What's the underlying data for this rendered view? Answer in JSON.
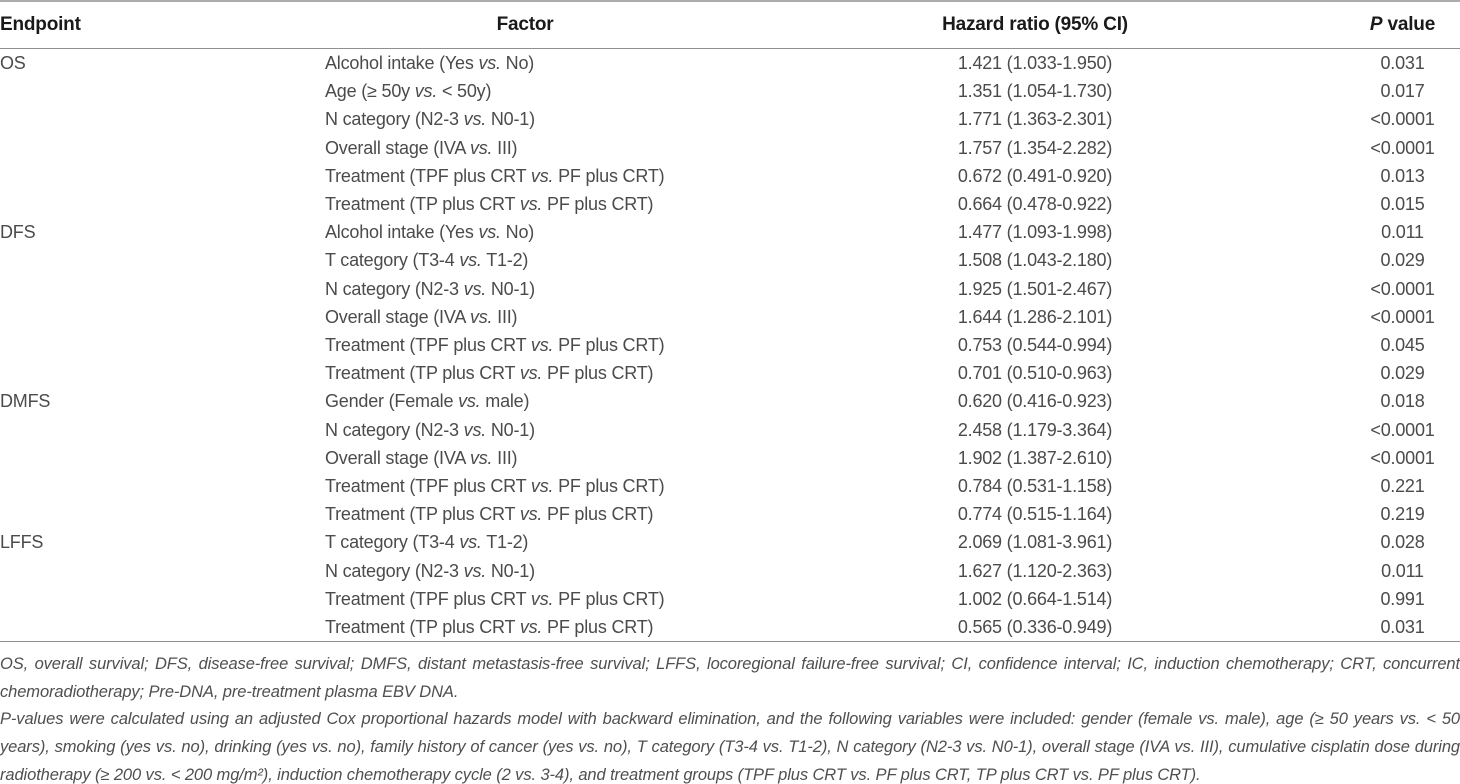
{
  "table": {
    "columns": [
      {
        "key": "endpoint",
        "label": "Endpoint"
      },
      {
        "key": "factor",
        "label": "Factor"
      },
      {
        "key": "hr",
        "label": "Hazard ratio (95% CI)"
      },
      {
        "key": "p",
        "label": "P value"
      }
    ],
    "groups": [
      {
        "endpoint": "OS",
        "rows": [
          {
            "factor": "Alcohol intake (Yes vs. No)",
            "hr": "1.421 (1.033-1.950)",
            "p": "0.031"
          },
          {
            "factor": "Age (≥ 50y vs. < 50y)",
            "hr": "1.351 (1.054-1.730)",
            "p": "0.017"
          },
          {
            "factor": "N category (N2-3 vs. N0-1)",
            "hr": "1.771 (1.363-2.301)",
            "p": "<0.0001"
          },
          {
            "factor": "Overall stage (IVA vs. III)",
            "hr": "1.757 (1.354-2.282)",
            "p": "<0.0001"
          },
          {
            "factor": "Treatment (TPF plus CRT vs. PF plus CRT)",
            "hr": "0.672 (0.491-0.920)",
            "p": "0.013"
          },
          {
            "factor": "Treatment (TP plus CRT vs. PF plus CRT)",
            "hr": "0.664 (0.478-0.922)",
            "p": "0.015"
          }
        ]
      },
      {
        "endpoint": "DFS",
        "rows": [
          {
            "factor": "Alcohol intake (Yes vs. No)",
            "hr": "1.477 (1.093-1.998)",
            "p": "0.011"
          },
          {
            "factor": "T category (T3-4 vs. T1-2)",
            "hr": "1.508 (1.043-2.180)",
            "p": "0.029"
          },
          {
            "factor": "N category (N2-3 vs. N0-1)",
            "hr": "1.925 (1.501-2.467)",
            "p": "<0.0001"
          },
          {
            "factor": "Overall stage (IVA vs. III)",
            "hr": "1.644 (1.286-2.101)",
            "p": "<0.0001"
          },
          {
            "factor": "Treatment (TPF plus CRT vs. PF plus CRT)",
            "hr": "0.753 (0.544-0.994)",
            "p": "0.045"
          },
          {
            "factor": "Treatment (TP plus CRT vs. PF plus CRT)",
            "hr": "0.701 (0.510-0.963)",
            "p": "0.029"
          }
        ]
      },
      {
        "endpoint": "DMFS",
        "rows": [
          {
            "factor": "Gender (Female vs. male)",
            "hr": "0.620 (0.416-0.923)",
            "p": "0.018"
          },
          {
            "factor": "N category (N2-3 vs. N0-1)",
            "hr": "2.458 (1.179-3.364)",
            "p": "<0.0001"
          },
          {
            "factor": "Overall stage (IVA vs. III)",
            "hr": "1.902 (1.387-2.610)",
            "p": "<0.0001"
          },
          {
            "factor": "Treatment (TPF plus CRT vs. PF plus CRT)",
            "hr": "0.784 (0.531-1.158)",
            "p": "0.221"
          },
          {
            "factor": "Treatment (TP plus CRT vs. PF plus CRT)",
            "hr": "0.774 (0.515-1.164)",
            "p": "0.219"
          }
        ]
      },
      {
        "endpoint": "LFFS",
        "rows": [
          {
            "factor": "T category (T3-4 vs. T1-2)",
            "hr": "2.069 (1.081-3.961)",
            "p": "0.028"
          },
          {
            "factor": "N category (N2-3 vs. N0-1)",
            "hr": "1.627 (1.120-2.363)",
            "p": "0.011"
          },
          {
            "factor": "Treatment (TPF plus CRT vs. PF plus CRT)",
            "hr": "1.002 (0.664-1.514)",
            "p": "0.991"
          },
          {
            "factor": "Treatment (TP plus CRT vs. PF plus CRT)",
            "hr": "0.565 (0.336-0.949)",
            "p": "0.031"
          }
        ]
      }
    ]
  },
  "footnotes": [
    "OS, overall survival; DFS, disease-free survival; DMFS, distant metastasis-free survival; LFFS, locoregional failure-free survival; CI, confidence interval; IC, induction chemotherapy; CRT, concurrent chemoradiotherapy; Pre-DNA, pre-treatment plasma EBV DNA.",
    "P-values were calculated using an adjusted Cox proportional hazards model with backward elimination, and the following variables were included: gender (female vs. male), age (≥ 50 years vs. < 50 years), smoking (yes vs. no), drinking (yes vs. no), family history of cancer (yes vs. no), T category (T3-4 vs. T1-2), N category (N2-3 vs. N0-1), overall stage (IVA vs. III), cumulative cisplatin dose during radiotherapy (≥ 200 vs. < 200 mg/m²), induction chemotherapy cycle (2 vs. 3-4), and treatment groups (TPF plus CRT vs. PF plus CRT, TP plus CRT vs. PF plus CRT)."
  ],
  "colors": {
    "background": "#ffffff",
    "rule": "#8f8f8f",
    "header_text": "#1a1a1a",
    "body_text": "#4b4b4b",
    "footnote_text": "#4f4f4f"
  }
}
